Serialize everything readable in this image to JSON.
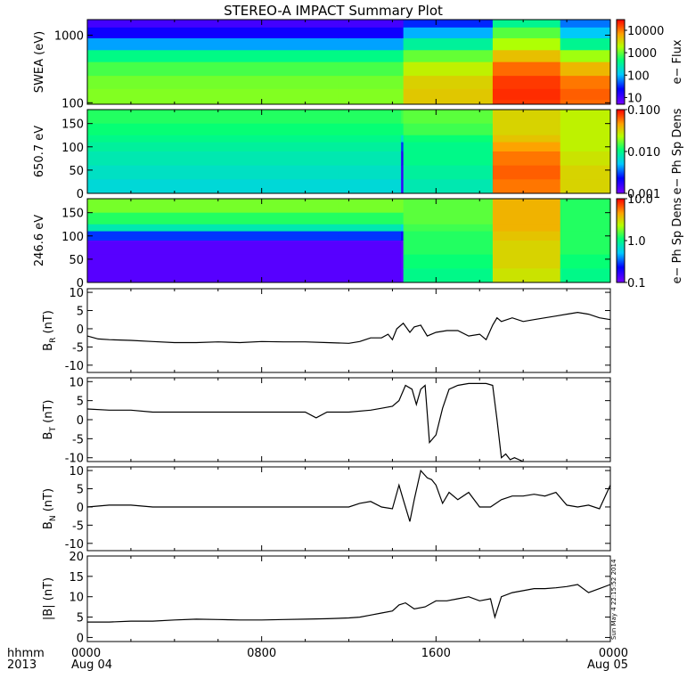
{
  "title": "STEREO-A IMPACT Summary Plot",
  "time_axis": {
    "row1_label": "hhmm",
    "row2_label": "2013",
    "ticks": [
      {
        "time": "0000",
        "date": "Aug 04",
        "hour": 0
      },
      {
        "time": "0800",
        "date": "",
        "hour": 8
      },
      {
        "time": "1600",
        "date": "",
        "hour": 16
      },
      {
        "time": "0000",
        "date": "Aug 05",
        "hour": 24
      }
    ]
  },
  "timestamp": "Sun May  4 22:15:52 2014",
  "colors": {
    "line": "#000000",
    "axis": "#000000"
  },
  "chart_data": [
    {
      "id": "swea",
      "type": "heatmap",
      "ylabel": "SWEA (eV)",
      "yscale": "log",
      "ylim": [
        95,
        1700
      ],
      "yticks": [
        {
          "v": 100,
          "label": "100"
        },
        {
          "v": 1000,
          "label": "1000"
        }
      ],
      "colorbar": {
        "label": "e− Flux",
        "scale": "log",
        "range": [
          5,
          30000
        ],
        "ticks": [
          {
            "v": 10,
            "label": "10"
          },
          {
            "v": 100,
            "label": "100"
          },
          {
            "v": 1000,
            "label": "1000"
          },
          {
            "v": 10000,
            "label": "10000"
          }
        ]
      },
      "times_hr": [
        0,
        11.5,
        14.4,
        14.5,
        18.5,
        18.6,
        21.6,
        21.7,
        24
      ],
      "energy_ev": [
        1700,
        1300,
        900,
        600,
        400,
        250,
        160,
        110,
        95
      ],
      "log_flux": [
        [
          0.8,
          1.2,
          1.4,
          2.4,
          2.8,
          3.0,
          3.1,
          3.1,
          3.1
        ],
        [
          0.8,
          1.2,
          1.4,
          2.4,
          2.8,
          3.0,
          3.1,
          3.1,
          3.1
        ],
        [
          0.8,
          1.2,
          1.4,
          2.4,
          2.8,
          3.0,
          3.1,
          3.1,
          3.1
        ],
        [
          1.3,
          1.7,
          2.2,
          2.8,
          3.2,
          3.5,
          3.6,
          3.6,
          3.6
        ],
        [
          1.3,
          1.7,
          2.2,
          2.8,
          3.2,
          3.5,
          3.6,
          3.6,
          3.6
        ],
        [
          2.3,
          2.8,
          3.1,
          3.4,
          3.9,
          4.2,
          4.3,
          4.3,
          4.2
        ],
        [
          2.3,
          2.8,
          3.1,
          3.4,
          3.9,
          4.2,
          4.3,
          4.3,
          4.2
        ],
        [
          1.6,
          1.9,
          2.2,
          2.9,
          3.5,
          3.9,
          4.1,
          4.1,
          4.0
        ],
        [
          1.6,
          1.9,
          2.2,
          2.9,
          3.5,
          3.9,
          4.1,
          4.1,
          4.0
        ]
      ]
    },
    {
      "id": "pad650",
      "type": "heatmap",
      "ylabel": "650.7 eV",
      "yscale": "linear",
      "ylim": [
        0,
        180
      ],
      "yticks": [
        {
          "v": 0,
          "label": "0"
        },
        {
          "v": 50,
          "label": "50"
        },
        {
          "v": 100,
          "label": "100"
        },
        {
          "v": 150,
          "label": "150"
        }
      ],
      "colorbar": {
        "label": "e− Ph Sp Dens",
        "scale": "log",
        "range": [
          0.001,
          0.1
        ],
        "ticks": [
          {
            "v": 0.001,
            "label": "0.001"
          },
          {
            "v": 0.01,
            "label": "0.010"
          },
          {
            "v": 0.1,
            "label": "0.100"
          }
        ]
      },
      "times_hr": [
        0,
        11.5,
        14.4,
        14.5,
        18.5,
        18.6,
        21.6,
        21.7,
        24
      ],
      "pitch_deg": [
        180,
        150,
        125,
        110,
        90,
        60,
        30,
        0
      ],
      "log_dens": [
        [
          -1.9,
          -1.9,
          -2.0,
          -2.0,
          -2.1,
          -2.1,
          -2.2,
          -2.2
        ],
        [
          -1.9,
          -1.9,
          -2.0,
          -2.0,
          -2.1,
          -2.1,
          -2.2,
          -2.2
        ],
        [
          -1.8,
          -1.9,
          -2.0,
          -2.4,
          -2.7,
          -2.8,
          -2.8,
          -2.8
        ],
        [
          -1.8,
          -1.8,
          -1.9,
          -2.0,
          -2.0,
          -2.0,
          -2.1,
          -2.1
        ],
        [
          -1.8,
          -1.8,
          -1.9,
          -2.0,
          -2.0,
          -2.0,
          -2.1,
          -2.1
        ],
        [
          -1.5,
          -1.5,
          -1.5,
          -1.4,
          -1.3,
          -1.2,
          -1.2,
          -1.3
        ],
        [
          -1.5,
          -1.5,
          -1.5,
          -1.4,
          -1.3,
          -1.2,
          -1.2,
          -1.3
        ],
        [
          -1.6,
          -1.6,
          -1.6,
          -1.6,
          -1.6,
          -1.5,
          -1.5,
          -1.5
        ],
        [
          -1.6,
          -1.6,
          -1.6,
          -1.6,
          -1.6,
          -1.5,
          -1.5,
          -1.5
        ]
      ]
    },
    {
      "id": "pad246",
      "type": "heatmap",
      "ylabel": "246.6 eV",
      "yscale": "linear",
      "ylim": [
        0,
        180
      ],
      "yticks": [
        {
          "v": 0,
          "label": "0"
        },
        {
          "v": 50,
          "label": "50"
        },
        {
          "v": 100,
          "label": "100"
        },
        {
          "v": 150,
          "label": "150"
        }
      ],
      "colorbar": {
        "label": "e− Ph Sp Dens",
        "scale": "log",
        "range": [
          0.1,
          10
        ],
        "ticks": [
          {
            "v": 0.1,
            "label": "0.1"
          },
          {
            "v": 1,
            "label": "1.0"
          },
          {
            "v": 10,
            "label": "10.0"
          }
        ]
      },
      "times_hr": [
        0,
        11.5,
        14.4,
        14.5,
        18.5,
        18.6,
        21.6,
        21.7,
        24
      ],
      "pitch_deg": [
        180,
        150,
        125,
        110,
        90,
        60,
        30,
        0
      ],
      "log_dens": [
        [
          0.3,
          0.2,
          0.0,
          -0.2,
          -0.9,
          -0.9,
          -0.9,
          -0.9
        ],
        [
          0.3,
          0.2,
          0.0,
          -0.2,
          -0.9,
          -0.9,
          -0.9,
          -0.9
        ],
        [
          0.3,
          0.2,
          0.0,
          -0.5,
          -0.9,
          -0.95,
          -0.95,
          -0.95
        ],
        [
          0.2,
          0.2,
          0.2,
          0.1,
          0.1,
          0.1,
          0.0,
          0.0
        ],
        [
          0.2,
          0.2,
          0.2,
          0.1,
          0.1,
          0.1,
          0.0,
          0.0
        ],
        [
          0.6,
          0.6,
          0.6,
          0.6,
          0.5,
          0.5,
          0.5,
          0.4
        ],
        [
          0.6,
          0.6,
          0.6,
          0.6,
          0.5,
          0.5,
          0.5,
          0.4
        ],
        [
          0.1,
          0.1,
          0.1,
          0.1,
          0.1,
          0.1,
          0.0,
          0.0
        ],
        [
          0.1,
          0.1,
          0.1,
          0.1,
          0.1,
          0.1,
          0.0,
          0.0
        ]
      ]
    },
    {
      "id": "br",
      "type": "line",
      "ylabel_main": "B",
      "ylabel_sub": "R",
      "ylabel_unit": " (nT)",
      "ylim": [
        -12,
        11
      ],
      "yticks": [
        {
          "v": -10,
          "label": "-10"
        },
        {
          "v": -5,
          "label": "-5"
        },
        {
          "v": 0,
          "label": "0"
        },
        {
          "v": 5,
          "label": "5"
        },
        {
          "v": 10,
          "label": "10"
        }
      ],
      "x": [
        0,
        0.5,
        1,
        2,
        3,
        4,
        5,
        6,
        7,
        8,
        9,
        10,
        11,
        12,
        12.5,
        13,
        13.5,
        13.8,
        14,
        14.2,
        14.5,
        14.8,
        15,
        15.3,
        15.6,
        16,
        16.5,
        17,
        17.5,
        18,
        18.3,
        18.6,
        18.8,
        19,
        19.5,
        20,
        20.5,
        21,
        21.5,
        22,
        22.5,
        23,
        23.5,
        24
      ],
      "y": [
        -2,
        -2.8,
        -3,
        -3.2,
        -3.5,
        -3.8,
        -3.8,
        -3.6,
        -3.8,
        -3.5,
        -3.6,
        -3.6,
        -3.8,
        -4,
        -3.5,
        -2.5,
        -2.5,
        -1.5,
        -3,
        0,
        1.5,
        -1,
        0.5,
        1,
        -2,
        -1,
        -0.5,
        -0.5,
        -2,
        -1.5,
        -3,
        1,
        3,
        2,
        3,
        2,
        2.5,
        3,
        3.5,
        4,
        4.5,
        4,
        3,
        2.5
      ]
    },
    {
      "id": "bt",
      "type": "line",
      "ylabel_main": "B",
      "ylabel_sub": "T",
      "ylabel_unit": " (nT)",
      "ylim": [
        -11,
        11
      ],
      "yticks": [
        {
          "v": -10,
          "label": "-10"
        },
        {
          "v": -5,
          "label": "-5"
        },
        {
          "v": 0,
          "label": "0"
        },
        {
          "v": 5,
          "label": "5"
        },
        {
          "v": 10,
          "label": "10"
        }
      ],
      "x": [
        0,
        1,
        2,
        3,
        4,
        5,
        6,
        7,
        8,
        9,
        10,
        10.5,
        11,
        11.5,
        12,
        13,
        13.5,
        14,
        14.3,
        14.6,
        14.9,
        15.1,
        15.3,
        15.5,
        15.7,
        16,
        16.3,
        16.6,
        17,
        17.5,
        18,
        18.3,
        18.6,
        18.8,
        19,
        19.2,
        19.4,
        19.6,
        20
      ],
      "y": [
        2.8,
        2.5,
        2.5,
        2,
        2,
        2,
        2,
        2,
        2,
        2,
        2,
        0.5,
        2,
        2,
        2,
        2.5,
        3,
        3.5,
        5,
        9,
        8,
        4,
        8,
        9,
        -6,
        -4,
        3,
        8,
        9,
        9.5,
        9.5,
        9.5,
        9,
        0,
        -10,
        -9,
        -10.5,
        -10,
        -11
      ]
    },
    {
      "id": "bn",
      "type": "line",
      "ylabel_main": "B",
      "ylabel_sub": "N",
      "ylabel_unit": " (nT)",
      "ylim": [
        -12,
        11
      ],
      "yticks": [
        {
          "v": -10,
          "label": "-10"
        },
        {
          "v": -5,
          "label": "-5"
        },
        {
          "v": 0,
          "label": "0"
        },
        {
          "v": 5,
          "label": "5"
        },
        {
          "v": 10,
          "label": "10"
        }
      ],
      "x": [
        0,
        1,
        2,
        3,
        4,
        5,
        6,
        7,
        8,
        9,
        10,
        11,
        12,
        12.5,
        13,
        13.5,
        14,
        14.3,
        14.5,
        14.8,
        15,
        15.3,
        15.6,
        15.8,
        16,
        16.3,
        16.6,
        17,
        17.5,
        18,
        18.5,
        19,
        19.5,
        20,
        20.5,
        21,
        21.5,
        22,
        22.5,
        23,
        23.5,
        24
      ],
      "y": [
        0,
        0.5,
        0.5,
        0,
        0,
        0,
        0,
        0,
        0,
        0,
        0,
        0,
        0,
        1,
        1.5,
        0,
        -0.5,
        6,
        2,
        -4,
        2,
        10,
        8,
        7.5,
        6,
        1,
        4,
        2,
        4,
        0,
        0,
        2,
        3,
        3,
        3.5,
        3,
        4,
        0.5,
        0,
        0.5,
        -0.5,
        6
      ]
    },
    {
      "id": "bmag",
      "type": "line",
      "ylabel_main": "|B|",
      "ylabel_sub": "",
      "ylabel_unit": " (nT)",
      "ylim": [
        -1,
        20
      ],
      "yticks": [
        {
          "v": 0,
          "label": "0"
        },
        {
          "v": 5,
          "label": "5"
        },
        {
          "v": 10,
          "label": "10"
        },
        {
          "v": 15,
          "label": "15"
        },
        {
          "v": 20,
          "label": "20"
        }
      ],
      "x": [
        0,
        1,
        2,
        3,
        4,
        5,
        6,
        7,
        8,
        9,
        10,
        11,
        12,
        12.5,
        13,
        13.5,
        14,
        14.3,
        14.6,
        15,
        15.5,
        16,
        16.5,
        17,
        17.5,
        18,
        18.5,
        18.7,
        19,
        19.5,
        20,
        20.5,
        21,
        21.5,
        22,
        22.5,
        23,
        23.5,
        24
      ],
      "y": [
        3.8,
        3.8,
        4,
        4,
        4.3,
        4.5,
        4.4,
        4.3,
        4.3,
        4.4,
        4.5,
        4.6,
        4.8,
        5,
        5.5,
        6,
        6.5,
        8,
        8.5,
        7,
        7.5,
        9,
        9,
        9.5,
        10,
        9,
        9.5,
        5,
        10,
        11,
        11.5,
        12,
        12,
        12.2,
        12.5,
        13,
        11,
        12,
        13
      ]
    }
  ]
}
